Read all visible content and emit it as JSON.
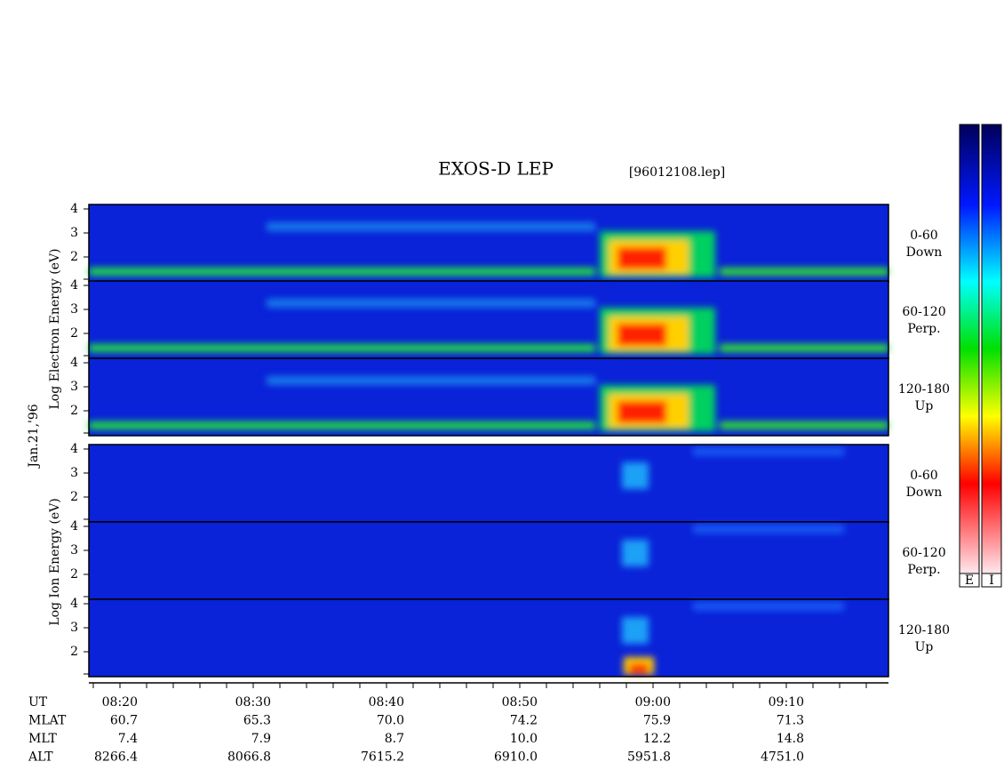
{
  "title": "EXOS-D LEP",
  "file": "[96012108.lep]",
  "date": "Jan.21,'96",
  "electron_label": "Log Electron Energy (eV)",
  "ion_label": "Log Ion Energy (eV)",
  "panels": [
    {
      "species": "electron",
      "y_ticks": [
        "4",
        "3",
        "2"
      ],
      "pitch": "0-60",
      "direction": "Down"
    },
    {
      "species": "electron",
      "y_ticks": [
        "4",
        "3",
        "2"
      ],
      "pitch": "60-120",
      "direction": "Perp."
    },
    {
      "species": "electron",
      "y_ticks": [
        "4",
        "3",
        "2"
      ],
      "pitch": "120-180",
      "direction": "Up"
    },
    {
      "species": "ion",
      "y_ticks": [
        "4",
        "3",
        "2"
      ],
      "pitch": "0-60",
      "direction": "Down"
    },
    {
      "species": "ion",
      "y_ticks": [
        "4",
        "3",
        "2"
      ],
      "pitch": "60-120",
      "direction": "Perp."
    },
    {
      "species": "ion",
      "y_ticks": [
        "4",
        "3",
        "2"
      ],
      "pitch": "120-180",
      "direction": "Up"
    }
  ],
  "colorbar_labels": [
    "E",
    "I"
  ],
  "ephemeris": [
    {
      "label": "UT",
      "values": [
        "08:20",
        "08:30",
        "08:40",
        "08:50",
        "09:00",
        "09:10"
      ]
    },
    {
      "label": "MLAT",
      "values": [
        "60.7",
        "65.3",
        "70.0",
        "74.2",
        "75.9",
        "71.3"
      ]
    },
    {
      "label": "MLT",
      "values": [
        "7.4",
        "7.9",
        "8.7",
        "10.0",
        "12.2",
        "14.8"
      ]
    },
    {
      "label": "ALT",
      "values": [
        "8266.4",
        "8066.8",
        "7615.2",
        "6910.0",
        "5951.8",
        "4751.0"
      ]
    }
  ]
}
